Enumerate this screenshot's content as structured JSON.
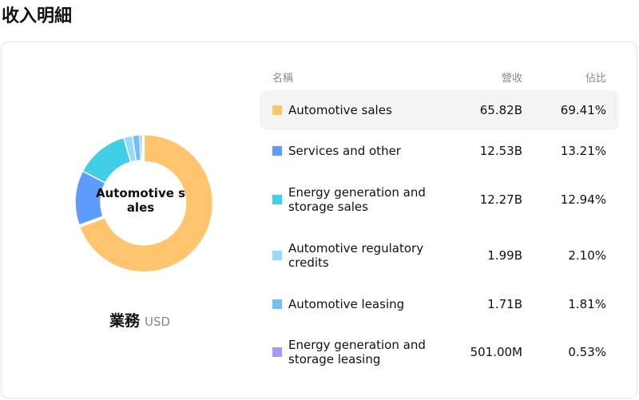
{
  "page_title": "收入明細",
  "chart_data": {
    "type": "pie",
    "center_label": "Automotive sales",
    "caption": "業務",
    "unit": "USD",
    "columns": [
      "名稱",
      "營收",
      "佔比"
    ],
    "slices": [
      {
        "name": "Automotive sales",
        "value_label": "65.82B",
        "percent_label": "69.41%",
        "percent": 69.41,
        "color": "#FFC46E",
        "highlighted": true
      },
      {
        "name": "Services and other",
        "value_label": "12.53B",
        "percent_label": "13.21%",
        "percent": 13.21,
        "color": "#5E9BFF"
      },
      {
        "name": "Energy generation and storage sales",
        "value_label": "12.27B",
        "percent_label": "12.94%",
        "percent": 12.94,
        "color": "#41CFE5"
      },
      {
        "name": "Automotive regulatory credits",
        "value_label": "1.99B",
        "percent_label": "2.10%",
        "percent": 2.1,
        "color": "#96DAFF"
      },
      {
        "name": "Automotive leasing",
        "value_label": "1.71B",
        "percent_label": "1.81%",
        "percent": 1.81,
        "color": "#6EC0F8"
      },
      {
        "name": "Energy generation and storage leasing",
        "value_label": "501.00M",
        "percent_label": "0.53%",
        "percent": 0.53,
        "color": "#A29BFE"
      }
    ]
  }
}
